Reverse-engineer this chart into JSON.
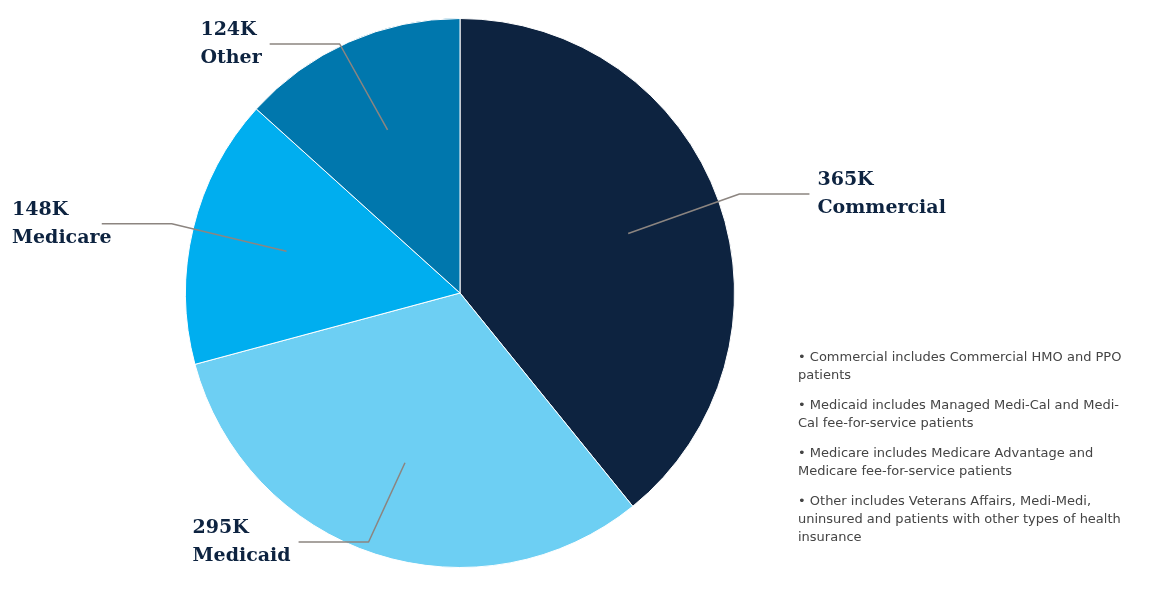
{
  "chart_data": {
    "type": "pie",
    "categories": [
      "Commercial",
      "Medicaid",
      "Medicare",
      "Other"
    ],
    "values": [
      365,
      295,
      148,
      124
    ],
    "value_labels": [
      "365K",
      "295K",
      "148K",
      "124K"
    ],
    "colors": [
      "#0d2340",
      "#6dcff3",
      "#00aeef",
      "#0077ad"
    ],
    "legend": false,
    "annotations": [
      "• Commercial includes Commercial HMO and PPO patients",
      "• Medicaid includes Managed Medi-Cal and Medi-Cal fee-for-service patients",
      "• Medicare includes Medicare Advantage and Medicare fee-for-service patients",
      "• Other includes Veterans Affairs, Medi-Medi, uninsured and patients with other types of health insurance"
    ]
  }
}
